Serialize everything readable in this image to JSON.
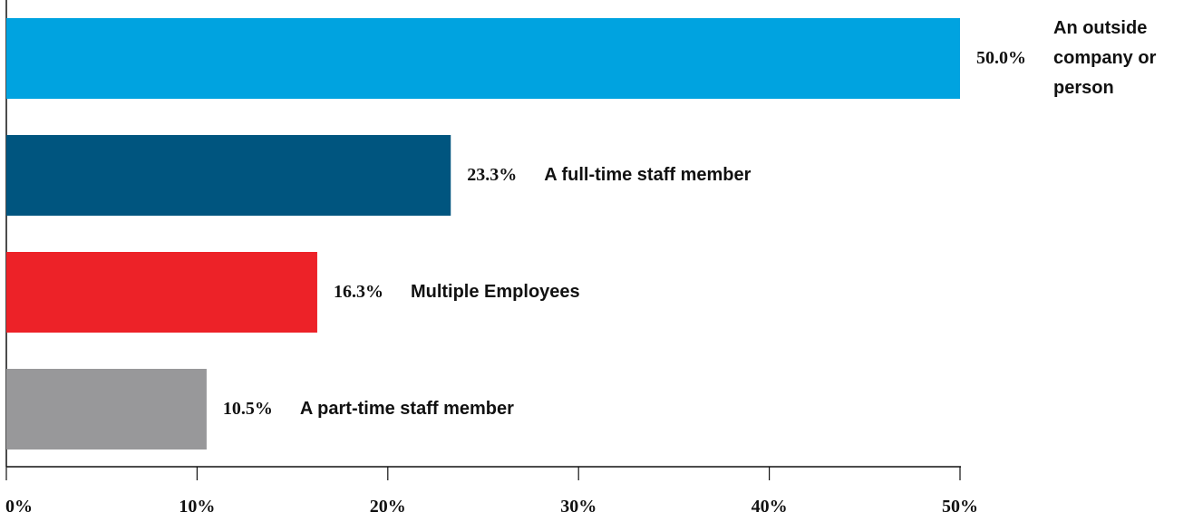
{
  "chart_data": {
    "type": "bar",
    "orientation": "horizontal",
    "categories": [
      "An outside company or person",
      "A full-time staff member",
      "Multiple Employees",
      "A part-time staff member"
    ],
    "values": [
      50.0,
      23.3,
      16.3,
      10.5
    ],
    "value_labels": [
      "50.0%",
      "23.3%",
      "16.3%",
      "10.5%"
    ],
    "colors": [
      "#00a3e0",
      "#00557f",
      "#ed2228",
      "#98989a"
    ],
    "xlim": [
      0,
      50
    ],
    "xticks": [
      {
        "value": 0,
        "label": "0%"
      },
      {
        "value": 10,
        "label": "10%"
      },
      {
        "value": 20,
        "label": "20%"
      },
      {
        "value": 30,
        "label": "30%"
      },
      {
        "value": 40,
        "label": "40%"
      },
      {
        "value": 50,
        "label": "50%"
      }
    ],
    "grid": false
  }
}
